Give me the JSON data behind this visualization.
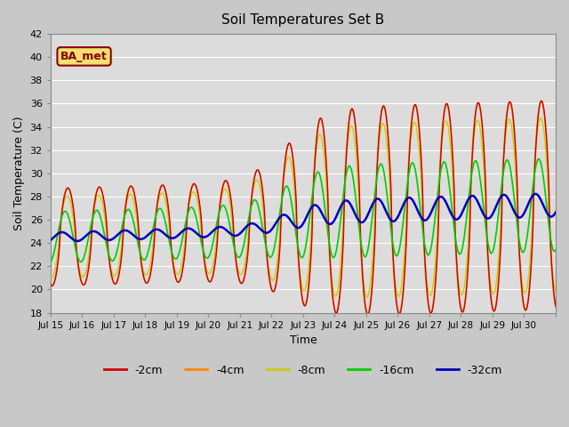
{
  "title": "Soil Temperatures Set B",
  "xlabel": "Time",
  "ylabel": "Soil Temperature (C)",
  "ylim": [
    18,
    42
  ],
  "yticks": [
    18,
    20,
    22,
    24,
    26,
    28,
    30,
    32,
    34,
    36,
    38,
    40,
    42
  ],
  "plot_bg_color": "#dcdcdc",
  "fig_bg_color": "#c8c8c8",
  "grid_color": "#ffffff",
  "annotation_text": "BA_met",
  "annotation_bg": "#f5e070",
  "annotation_border": "#8b0000",
  "legend_entries": [
    "-2cm",
    "-4cm",
    "-8cm",
    "-16cm",
    "-32cm"
  ],
  "line_colors": [
    "#cc0000",
    "#ff8800",
    "#cccc00",
    "#00cc00",
    "#0000bb"
  ],
  "line_widths": [
    1.0,
    1.0,
    1.0,
    1.2,
    1.8
  ],
  "xtick_labels": [
    "Jul 15",
    "Jul 16",
    "Jul 17",
    "Jul 18",
    "Jul 19",
    "Jul 20",
    "Jul 21",
    "Jul 22",
    "Jul 23",
    "Jul 24",
    "Jul 25",
    "Jul 26",
    "Jul 27",
    "Jul 28",
    "Jul 29",
    "Jul 30"
  ],
  "figsize": [
    6.4,
    4.8
  ],
  "dpi": 100
}
